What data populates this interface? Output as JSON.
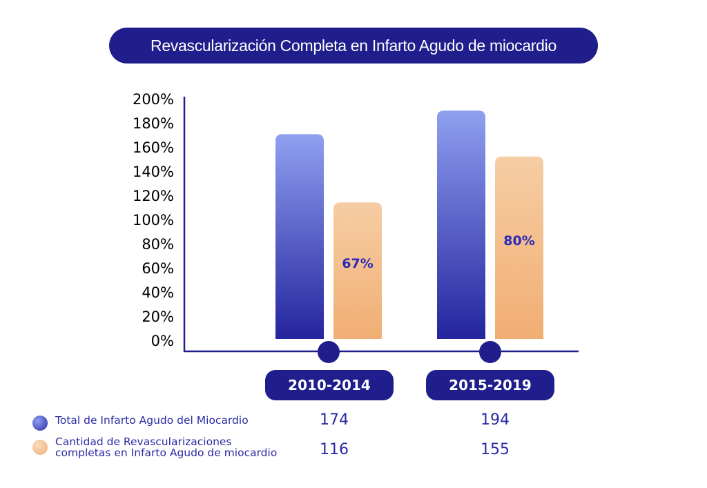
{
  "title": "Revascularización Completa en Infarto Agudo de miocardio",
  "colors": {
    "navy": "#1f1e8c",
    "blue_top": "#8fa0f0",
    "blue_bottom": "#24249e",
    "orange_top": "#f6cda4",
    "orange_bottom": "#f1ae73",
    "label_text": "#2a2aa6"
  },
  "chart_data": {
    "type": "bar",
    "categories": [
      "2010-2014",
      "2015-2019"
    ],
    "series": [
      {
        "name": "Total de Infarto Agudo del Miocardio",
        "values": [
          174,
          194
        ],
        "color": "blue"
      },
      {
        "name": "Cantidad de Revascularizaciones completas en Infarto Agudo de miocardio",
        "values": [
          116,
          155
        ],
        "color": "orange"
      }
    ],
    "bar_labels": [
      "67%",
      "80%"
    ],
    "ylim": [
      0,
      200
    ],
    "y_ticks": [
      "0%",
      "20%",
      "40%",
      "60%",
      "80%",
      "100%",
      "120%",
      "140%",
      "160%",
      "180%",
      "200%"
    ],
    "grid": false,
    "legend_position": "bottom-left"
  },
  "legend": [
    {
      "label": "Total de Infarto Agudo del Miocardio",
      "values": [
        "174",
        "194"
      ]
    },
    {
      "label_line1": "Cantidad de Revascularizaciones",
      "label_line2": "completas en Infarto Agudo de miocardio",
      "values": [
        "116",
        "155"
      ]
    }
  ]
}
